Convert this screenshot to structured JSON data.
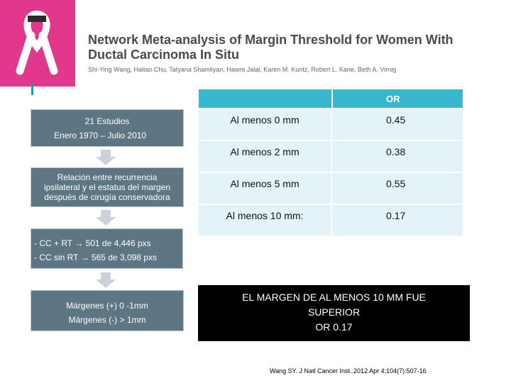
{
  "header": {
    "title_line1": "Network Meta-analysis of Margin Threshold for Women With",
    "title_line2": "Ductal Carcinoma In Situ",
    "authors": "Shi-Ying Wang, Haitao Chu, Tatyana Shamliyan, Hawre Jalal, Karen M. Kuntz, Robert L. Kane, Beth A. Virnig"
  },
  "flow": {
    "studies": {
      "line1": "21 Estudios",
      "line2": "Enero 1970 – Julio 2010"
    },
    "relation": {
      "line1": "Relación entre recurrencia",
      "line2": "ipsilateral y el estatus del margen",
      "line3": "después de cirugía conservadora"
    },
    "groups": {
      "line1": "- CC + RT → 501 de 4,446 pxs",
      "line2": "- CC sin RT → 565 de 3,098 pxs"
    },
    "margins": {
      "line1": "Márgenes (+) 0 -1mm",
      "line2": "Márgenes (-) >  1mm"
    }
  },
  "table": {
    "header_or": "OR",
    "rows": [
      {
        "label": "Al menos 0 mm",
        "or": "0.45"
      },
      {
        "label": "Al menos 2 mm",
        "or": "0.38"
      },
      {
        "label": "Al menos 5 mm",
        "or": "0.55"
      },
      {
        "label": "Al menos 10 mm:",
        "or": "0.17"
      }
    ]
  },
  "conclusion": {
    "line1": "EL MARGEN DE AL MENOS 10 MM  FUE",
    "line2": "SUPERIOR",
    "line3": "OR 0.17"
  },
  "citation": "Wang SY. J Natl Cancer Inst. 2012 Apr 4;104(7):507-16",
  "colors": {
    "brand_pink": "#e2388b",
    "box_gray": "#5d7684",
    "table_header": "#38b8cf",
    "table_row": "#e4f3f8"
  }
}
